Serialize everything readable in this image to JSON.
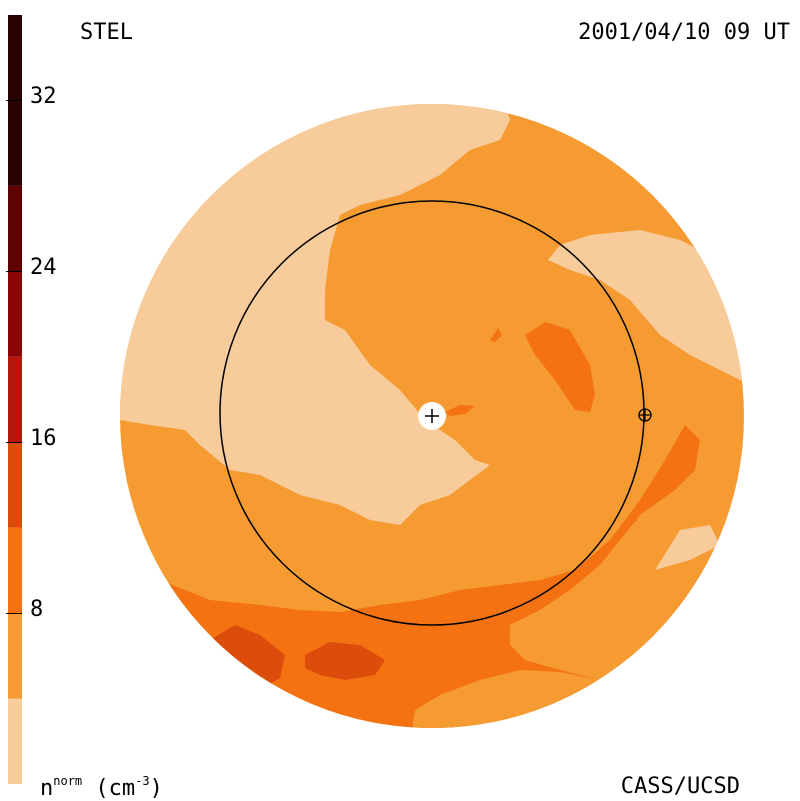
{
  "header": {
    "source": "STEL",
    "timestamp": "2001/04/10 09 UT"
  },
  "footer": {
    "credit": "CASS/UCSD",
    "unit_base": "n",
    "unit_super": "norm",
    "unit_paren_open": "(cm",
    "unit_exp": "-3",
    "unit_paren_close": ")"
  },
  "colorbar": {
    "ticks": [
      "32",
      "24",
      "16",
      "8"
    ],
    "tick_values": [
      32,
      24,
      16,
      8
    ],
    "range": [
      0,
      36
    ],
    "bands": [
      {
        "from": 0,
        "to": 4,
        "color": "#f7cb9a"
      },
      {
        "from": 4,
        "to": 8,
        "color": "#f59b32"
      },
      {
        "from": 8,
        "to": 12,
        "color": "#f57212"
      },
      {
        "from": 12,
        "to": 16,
        "color": "#dc4c0b"
      },
      {
        "from": 16,
        "to": 20,
        "color": "#b7170a"
      },
      {
        "from": 20,
        "to": 24,
        "color": "#8b0506"
      },
      {
        "from": 24,
        "to": 28,
        "color": "#5e0202"
      },
      {
        "from": 28,
        "to": 36,
        "color": "#2a0202"
      }
    ]
  },
  "colors": {
    "level1": "#f7cb9a",
    "level2": "#f59b32",
    "level3": "#f57212",
    "level4": "#dc4c0b"
  }
}
